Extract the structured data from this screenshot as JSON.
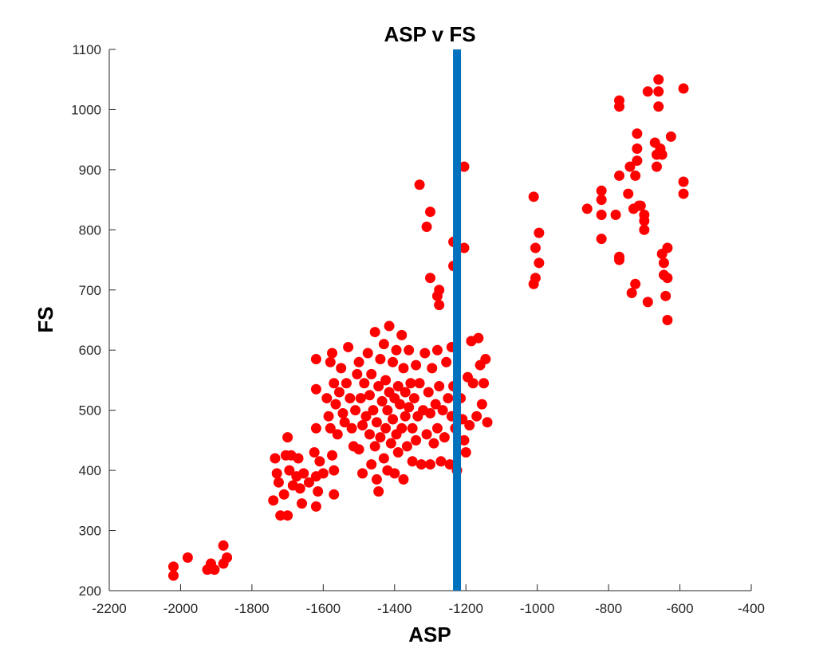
{
  "chart_data": {
    "type": "scatter",
    "title": "ASP v FS",
    "xlabel": "ASP",
    "ylabel": "FS",
    "xlim": [
      -2200,
      -400
    ],
    "ylim": [
      200,
      1100
    ],
    "xticks": [
      -2200,
      -2000,
      -1800,
      -1600,
      -1400,
      -1200,
      -1000,
      -800,
      -600,
      -400
    ],
    "yticks": [
      200,
      300,
      400,
      500,
      600,
      700,
      800,
      900,
      1000,
      1100
    ],
    "grid": false,
    "colors": {
      "points": "#ff0000",
      "reference_line": "#0072bd"
    },
    "reference_line": {
      "orientation": "vertical",
      "x": -1225
    },
    "series": [
      {
        "points": [
          [
            -2020,
            240
          ],
          [
            -2020,
            225
          ],
          [
            -1980,
            255
          ],
          [
            -1925,
            235
          ],
          [
            -1915,
            245
          ],
          [
            -1905,
            235
          ],
          [
            -1880,
            275
          ],
          [
            -1870,
            255
          ],
          [
            -1880,
            245
          ],
          [
            -1735,
            420
          ],
          [
            -1730,
            395
          ],
          [
            -1725,
            380
          ],
          [
            -1740,
            350
          ],
          [
            -1720,
            325
          ],
          [
            -1710,
            360
          ],
          [
            -1705,
            425
          ],
          [
            -1700,
            455
          ],
          [
            -1695,
            400
          ],
          [
            -1690,
            425
          ],
          [
            -1700,
            325
          ],
          [
            -1685,
            375
          ],
          [
            -1675,
            390
          ],
          [
            -1670,
            420
          ],
          [
            -1665,
            370
          ],
          [
            -1660,
            345
          ],
          [
            -1655,
            395
          ],
          [
            -1640,
            380
          ],
          [
            -1625,
            430
          ],
          [
            -1620,
            390
          ],
          [
            -1620,
            340
          ],
          [
            -1615,
            365
          ],
          [
            -1610,
            415
          ],
          [
            -1600,
            395
          ],
          [
            -1575,
            425
          ],
          [
            -1570,
            400
          ],
          [
            -1570,
            360
          ],
          [
            -1620,
            470
          ],
          [
            -1620,
            585
          ],
          [
            -1620,
            535
          ],
          [
            -1590,
            520
          ],
          [
            -1585,
            490
          ],
          [
            -1580,
            470
          ],
          [
            -1580,
            580
          ],
          [
            -1575,
            595
          ],
          [
            -1570,
            545
          ],
          [
            -1565,
            510
          ],
          [
            -1560,
            460
          ],
          [
            -1555,
            530
          ],
          [
            -1550,
            570
          ],
          [
            -1545,
            495
          ],
          [
            -1540,
            480
          ],
          [
            -1535,
            545
          ],
          [
            -1530,
            605
          ],
          [
            -1525,
            520
          ],
          [
            -1520,
            470
          ],
          [
            -1515,
            440
          ],
          [
            -1510,
            500
          ],
          [
            -1505,
            560
          ],
          [
            -1500,
            580
          ],
          [
            -1500,
            435
          ],
          [
            -1495,
            520
          ],
          [
            -1490,
            395
          ],
          [
            -1490,
            475
          ],
          [
            -1485,
            545
          ],
          [
            -1480,
            490
          ],
          [
            -1475,
            595
          ],
          [
            -1470,
            460
          ],
          [
            -1470,
            525
          ],
          [
            -1465,
            410
          ],
          [
            -1465,
            560
          ],
          [
            -1460,
            500
          ],
          [
            -1455,
            440
          ],
          [
            -1455,
            630
          ],
          [
            -1450,
            480
          ],
          [
            -1450,
            385
          ],
          [
            -1445,
            540
          ],
          [
            -1445,
            365
          ],
          [
            -1440,
            585
          ],
          [
            -1440,
            455
          ],
          [
            -1435,
            515
          ],
          [
            -1430,
            420
          ],
          [
            -1430,
            610
          ],
          [
            -1425,
            470
          ],
          [
            -1425,
            550
          ],
          [
            -1420,
            500
          ],
          [
            -1420,
            400
          ],
          [
            -1415,
            640
          ],
          [
            -1415,
            530
          ],
          [
            -1410,
            445
          ],
          [
            -1405,
            580
          ],
          [
            -1405,
            485
          ],
          [
            -1400,
            520
          ],
          [
            -1400,
            395
          ],
          [
            -1395,
            460
          ],
          [
            -1395,
            600
          ],
          [
            -1390,
            540
          ],
          [
            -1390,
            430
          ],
          [
            -1385,
            510
          ],
          [
            -1380,
            470
          ],
          [
            -1380,
            625
          ],
          [
            -1375,
            570
          ],
          [
            -1375,
            385
          ],
          [
            -1370,
            490
          ],
          [
            -1370,
            530
          ],
          [
            -1365,
            440
          ],
          [
            -1360,
            600
          ],
          [
            -1360,
            505
          ],
          [
            -1355,
            545
          ],
          [
            -1350,
            470
          ],
          [
            -1350,
            415
          ],
          [
            -1345,
            520
          ],
          [
            -1340,
            575
          ],
          [
            -1340,
            450
          ],
          [
            -1335,
            490
          ],
          [
            -1330,
            545
          ],
          [
            -1325,
            410
          ],
          [
            -1320,
            500
          ],
          [
            -1315,
            595
          ],
          [
            -1310,
            460
          ],
          [
            -1305,
            530
          ],
          [
            -1300,
            495
          ],
          [
            -1300,
            410
          ],
          [
            -1295,
            570
          ],
          [
            -1290,
            445
          ],
          [
            -1285,
            510
          ],
          [
            -1280,
            600
          ],
          [
            -1280,
            470
          ],
          [
            -1275,
            540
          ],
          [
            -1270,
            415
          ],
          [
            -1265,
            500
          ],
          [
            -1260,
            455
          ],
          [
            -1255,
            580
          ],
          [
            -1250,
            520
          ],
          [
            -1245,
            410
          ],
          [
            -1240,
            605
          ],
          [
            -1240,
            490
          ],
          [
            -1235,
            540
          ],
          [
            -1230,
            470
          ],
          [
            -1225,
            400
          ],
          [
            -1215,
            520
          ],
          [
            -1210,
            485
          ],
          [
            -1205,
            450
          ],
          [
            -1200,
            430
          ],
          [
            -1195,
            555
          ],
          [
            -1190,
            475
          ],
          [
            -1185,
            615
          ],
          [
            -1180,
            545
          ],
          [
            -1170,
            490
          ],
          [
            -1165,
            620
          ],
          [
            -1160,
            575
          ],
          [
            -1155,
            510
          ],
          [
            -1150,
            545
          ],
          [
            -1145,
            585
          ],
          [
            -1140,
            480
          ],
          [
            -1330,
            875
          ],
          [
            -1310,
            805
          ],
          [
            -1300,
            830
          ],
          [
            -1300,
            720
          ],
          [
            -1280,
            690
          ],
          [
            -1275,
            700
          ],
          [
            -1275,
            675
          ],
          [
            -1235,
            740
          ],
          [
            -1235,
            780
          ],
          [
            -1205,
            905
          ],
          [
            -1205,
            770
          ],
          [
            -1010,
            855
          ],
          [
            -1010,
            710
          ],
          [
            -1005,
            720
          ],
          [
            -1005,
            770
          ],
          [
            -995,
            745
          ],
          [
            -995,
            795
          ],
          [
            -860,
            835
          ],
          [
            -820,
            865
          ],
          [
            -820,
            850
          ],
          [
            -820,
            825
          ],
          [
            -820,
            785
          ],
          [
            -780,
            825
          ],
          [
            -770,
            1015
          ],
          [
            -770,
            1005
          ],
          [
            -770,
            890
          ],
          [
            -770,
            755
          ],
          [
            -770,
            750
          ],
          [
            -745,
            860
          ],
          [
            -740,
            905
          ],
          [
            -735,
            695
          ],
          [
            -730,
            835
          ],
          [
            -725,
            890
          ],
          [
            -725,
            710
          ],
          [
            -720,
            960
          ],
          [
            -720,
            935
          ],
          [
            -720,
            915
          ],
          [
            -715,
            840
          ],
          [
            -710,
            840
          ],
          [
            -700,
            825
          ],
          [
            -700,
            815
          ],
          [
            -700,
            800
          ],
          [
            -690,
            1030
          ],
          [
            -690,
            680
          ],
          [
            -670,
            945
          ],
          [
            -665,
            925
          ],
          [
            -665,
            905
          ],
          [
            -660,
            1050
          ],
          [
            -660,
            1005
          ],
          [
            -660,
            1030
          ],
          [
            -655,
            935
          ],
          [
            -650,
            925
          ],
          [
            -650,
            760
          ],
          [
            -645,
            745
          ],
          [
            -645,
            725
          ],
          [
            -640,
            690
          ],
          [
            -635,
            770
          ],
          [
            -635,
            720
          ],
          [
            -635,
            650
          ],
          [
            -625,
            955
          ],
          [
            -590,
            1035
          ],
          [
            -590,
            880
          ],
          [
            -590,
            860
          ]
        ]
      }
    ]
  }
}
